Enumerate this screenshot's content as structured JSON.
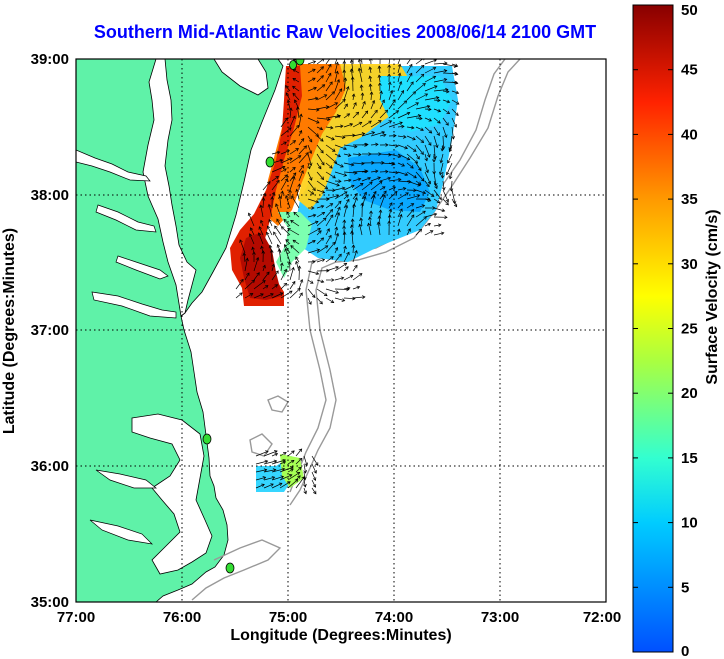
{
  "title": "Southern Mid-Atlantic Raw Velocities 2008/06/14 2100 GMT",
  "x_axis": {
    "label": "Longitude (Degrees:Minutes)",
    "ticks": [
      "77:00",
      "76:00",
      "75:00",
      "74:00",
      "73:00",
      "72:00"
    ]
  },
  "y_axis": {
    "label": "Latitude (Degrees:Minutes)",
    "ticks": [
      "39:00",
      "38:00",
      "37:00",
      "36:00",
      "35:00"
    ]
  },
  "colorbar": {
    "label": "Surface Velocity (cm/s)",
    "ticks": [
      "50",
      "45",
      "40",
      "35",
      "30",
      "25",
      "20",
      "15",
      "10",
      "5",
      "0"
    ],
    "min": 0,
    "max": 50,
    "colormap": "jet"
  },
  "colors": {
    "land": "#5ff2a8",
    "ocean": "#ffffff",
    "bathymetry": "#999999",
    "title": "#0000ff",
    "station": "#33dd33"
  },
  "chart_data": {
    "type": "heatmap",
    "xlim": [
      -77,
      -72
    ],
    "ylim": [
      35,
      39
    ],
    "grid": true,
    "stations": [
      {
        "lon": -74.87,
        "lat": 38.99
      },
      {
        "lon": -75.1,
        "lat": 38.2
      },
      {
        "lon": -75.72,
        "lat": 36.2
      },
      {
        "lon": -75.52,
        "lat": 35.27
      }
    ]
  }
}
